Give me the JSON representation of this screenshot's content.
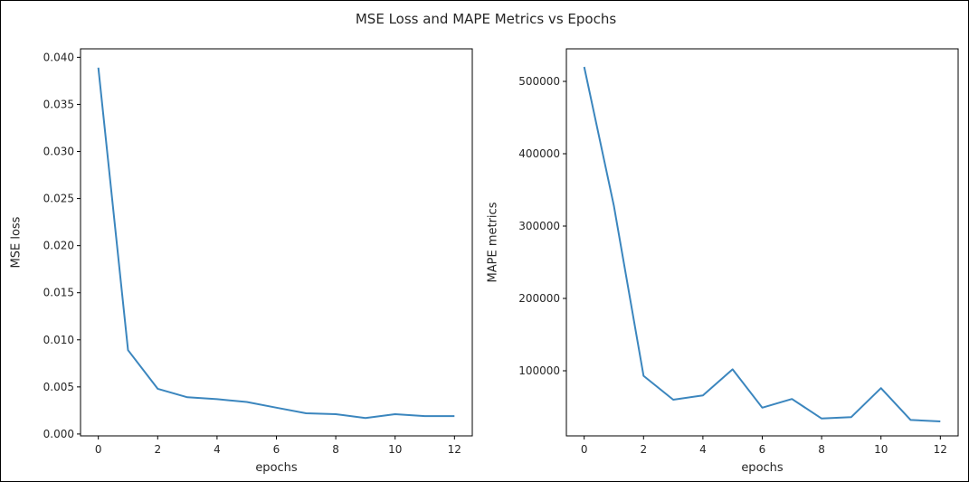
{
  "figure": {
    "title": "MSE Loss and MAPE Metrics vs Epochs",
    "line_color": "#3b86be"
  },
  "chart_data": [
    {
      "type": "line",
      "xlabel": "epochs",
      "ylabel": "MSE loss",
      "xlim": [
        -0.6,
        12.6
      ],
      "ylim": [
        -0.0002,
        0.0409
      ],
      "xticks": [
        0,
        2,
        4,
        6,
        8,
        10,
        12
      ],
      "xtick_labels": [
        "0",
        "2",
        "4",
        "6",
        "8",
        "10",
        "12"
      ],
      "yticks": [
        0.0,
        0.005,
        0.01,
        0.015,
        0.02,
        0.025,
        0.03,
        0.035,
        0.04
      ],
      "ytick_labels": [
        "0.000",
        "0.005",
        "0.010",
        "0.015",
        "0.020",
        "0.025",
        "0.030",
        "0.035",
        "0.040"
      ],
      "grid": false,
      "series": [
        {
          "x": [
            0,
            1,
            2,
            3,
            4,
            5,
            6,
            7,
            8,
            9,
            10,
            11,
            12
          ],
          "values": [
            0.0389,
            0.0089,
            0.0048,
            0.0039,
            0.0037,
            0.0034,
            0.0028,
            0.0022,
            0.0021,
            0.0017,
            0.0021,
            0.0019,
            0.0019
          ]
        }
      ]
    },
    {
      "type": "line",
      "xlabel": "epochs",
      "ylabel": "MAPE metrics",
      "xlim": [
        -0.6,
        12.6
      ],
      "ylim": [
        10000,
        545000
      ],
      "xticks": [
        0,
        2,
        4,
        6,
        8,
        10,
        12
      ],
      "xtick_labels": [
        "0",
        "2",
        "4",
        "6",
        "8",
        "10",
        "12"
      ],
      "yticks": [
        100000,
        200000,
        300000,
        400000,
        500000
      ],
      "ytick_labels": [
        "100000",
        "200000",
        "300000",
        "400000",
        "500000"
      ],
      "grid": false,
      "series": [
        {
          "x": [
            0,
            1,
            2,
            3,
            4,
            5,
            6,
            7,
            8,
            9,
            10,
            11,
            12
          ],
          "values": [
            520000,
            328000,
            93000,
            60000,
            66000,
            102000,
            49000,
            61000,
            34000,
            36000,
            76000,
            32000,
            30000
          ]
        }
      ]
    }
  ]
}
